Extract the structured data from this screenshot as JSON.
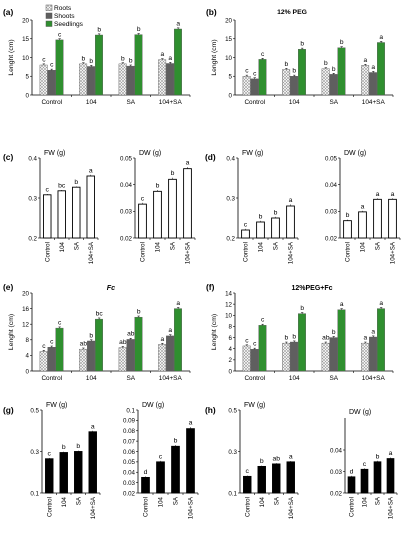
{
  "colors": {
    "roots_fill": "#ffffff",
    "roots_pattern": "#9a9a9a",
    "shoots_fill": "#5f5f5f",
    "seedlings_fill": "#2f8f2f",
    "axis": "#000000",
    "white_bar": "#ffffff",
    "black_bar": "#000000"
  },
  "legend": {
    "roots": "Roots",
    "shoots": "Shoots",
    "seedlings": "Seedlings"
  },
  "chart_data": [
    {
      "type": "bar",
      "panel": "(a)",
      "title": "",
      "ylabel": "Lenght (cm)",
      "ylim": [
        0,
        20
      ],
      "yticks": [
        0,
        5,
        10,
        15,
        20
      ],
      "categories": [
        "Control",
        "104",
        "SA",
        "104+SA"
      ],
      "series": [
        {
          "name": "Roots",
          "values": [
            8.0,
            8.3,
            8.3,
            9.4
          ],
          "errors": [
            0.3,
            0.3,
            0.3,
            0.3
          ],
          "letters": [
            "c",
            "b",
            "b",
            "a"
          ]
        },
        {
          "name": "Shoots",
          "values": [
            6.6,
            7.6,
            7.7,
            8.4
          ],
          "errors": [
            0.3,
            0.3,
            0.3,
            0.3
          ],
          "letters": [
            "c",
            "b",
            "b",
            "a"
          ]
        },
        {
          "name": "Seedlings",
          "values": [
            14.7,
            16.0,
            16.1,
            17.6
          ],
          "errors": [
            0.3,
            0.3,
            0.3,
            0.3
          ],
          "letters": [
            "c",
            "b",
            "b",
            "a"
          ]
        }
      ]
    },
    {
      "type": "bar",
      "panel": "(b)",
      "title": "12% PEG",
      "ylabel": "Lenght (cm)",
      "ylim": [
        0,
        20
      ],
      "yticks": [
        0,
        5,
        10,
        15,
        20
      ],
      "categories": [
        "Control",
        "104",
        "SA",
        "104+SA"
      ],
      "series": [
        {
          "name": "Roots",
          "values": [
            5.0,
            6.8,
            7.0,
            7.9
          ],
          "errors": [
            0.3,
            0.3,
            0.3,
            0.3
          ],
          "letters": [
            "c",
            "b",
            "b",
            "a"
          ]
        },
        {
          "name": "Shoots",
          "values": [
            4.3,
            5.0,
            5.5,
            6.0
          ],
          "errors": [
            0.3,
            0.3,
            0.3,
            0.3
          ],
          "letters": [
            "c",
            "b",
            "b",
            "a"
          ]
        },
        {
          "name": "Seedlings",
          "values": [
            9.5,
            12.2,
            12.6,
            14.0
          ],
          "errors": [
            0.3,
            0.3,
            0.3,
            0.3
          ],
          "letters": [
            "c",
            "b",
            "b",
            "a"
          ]
        }
      ]
    },
    {
      "type": "bar",
      "panel": "(c)",
      "title": "FW (g)",
      "ylim": [
        0.2,
        0.4
      ],
      "yticks": [
        0.2,
        0.3,
        0.4
      ],
      "categories": [
        "Control",
        "104",
        "SA",
        "104+SA"
      ],
      "values": [
        0.308,
        0.318,
        0.327,
        0.355
      ],
      "errors": [
        0.002,
        0.002,
        0.002,
        0.003
      ],
      "letters": [
        "c",
        "bc",
        "b",
        "a"
      ]
    },
    {
      "type": "bar",
      "panel": "(c)",
      "title": "DW (g)",
      "ylim": [
        0.02,
        0.05
      ],
      "yticks": [
        0.02,
        0.03,
        0.04,
        0.05
      ],
      "categories": [
        "Control",
        "104",
        "SA",
        "104+SA"
      ],
      "values": [
        0.0327,
        0.0375,
        0.042,
        0.046
      ],
      "errors": [
        0.0005,
        0.0005,
        0.0006,
        0.0006
      ],
      "letters": [
        "c",
        "b",
        "b",
        "a"
      ]
    },
    {
      "type": "bar",
      "panel": "(d)",
      "title": "FW (g)",
      "ylim": [
        0.2,
        0.4
      ],
      "yticks": [
        0.2,
        0.3,
        0.4
      ],
      "categories": [
        "Control",
        "104",
        "SA",
        "104+SA"
      ],
      "values": [
        0.22,
        0.24,
        0.25,
        0.28
      ],
      "errors": [
        0.003,
        0.003,
        0.003,
        0.004
      ],
      "letters": [
        "c",
        "b",
        "b",
        "a"
      ]
    },
    {
      "type": "bar",
      "panel": "(d)",
      "title": "DW (g)",
      "ylim": [
        0.02,
        0.05
      ],
      "yticks": [
        0.02,
        0.03,
        0.04,
        0.05
      ],
      "categories": [
        "Control",
        "104",
        "SA",
        "104+SA"
      ],
      "values": [
        0.0265,
        0.0298,
        0.0345,
        0.0345
      ],
      "errors": [
        0.0004,
        0.0004,
        0.0004,
        0.0004
      ],
      "letters": [
        "b",
        "a",
        "a",
        "a"
      ]
    },
    {
      "type": "bar",
      "panel": "(e)",
      "title": "Fc",
      "ylabel": "Lenght (cm)",
      "ylim": [
        0,
        20
      ],
      "yticks": [
        0,
        4,
        8,
        12,
        16,
        20
      ],
      "categories": [
        "Control",
        "104",
        "SA",
        "104+SA"
      ],
      "series": [
        {
          "name": "Roots",
          "values": [
            5.0,
            5.6,
            6.0,
            6.8
          ],
          "errors": [
            0.3,
            0.3,
            0.3,
            0.3
          ],
          "letters": [
            "c",
            "ab",
            "ab",
            "a"
          ]
        },
        {
          "name": "Shoots",
          "values": [
            6.1,
            7.7,
            8.1,
            9.0
          ],
          "errors": [
            0.3,
            0.3,
            0.3,
            0.3
          ],
          "letters": [
            "c",
            "b",
            "ab",
            "a"
          ]
        },
        {
          "name": "Seedlings",
          "values": [
            11.0,
            13.3,
            13.8,
            16.0
          ],
          "errors": [
            0.3,
            0.3,
            0.3,
            0.3
          ],
          "letters": [
            "c",
            "bc",
            "b",
            "a"
          ]
        }
      ]
    },
    {
      "type": "bar",
      "panel": "(f)",
      "title": "12%PEG+Fc",
      "ylabel": "Lenght (cm)",
      "ylim": [
        0,
        14
      ],
      "yticks": [
        0,
        2,
        4,
        6,
        8,
        10,
        12,
        14
      ],
      "categories": [
        "Control",
        "104",
        "SA",
        "104+SA"
      ],
      "series": [
        {
          "name": "Roots",
          "values": [
            4.5,
            5.0,
            5.0,
            5.0
          ],
          "errors": [
            0.2,
            0.2,
            0.2,
            0.2
          ],
          "letters": [
            "c",
            "b",
            "ab",
            "a"
          ]
        },
        {
          "name": "Shoots",
          "values": [
            3.9,
            5.2,
            6.0,
            6.1
          ],
          "errors": [
            0.2,
            0.2,
            0.2,
            0.2
          ],
          "letters": [
            "c",
            "b",
            "b",
            "a"
          ]
        },
        {
          "name": "Seedlings",
          "values": [
            8.2,
            10.3,
            11.0,
            11.2
          ],
          "errors": [
            0.2,
            0.2,
            0.2,
            0.2
          ],
          "letters": [
            "c",
            "b",
            "a",
            "a"
          ]
        }
      ]
    },
    {
      "type": "bar",
      "panel": "(g)",
      "title": "FW (g)",
      "ylim": [
        0.1,
        0.5
      ],
      "yticks": [
        0.1,
        0.3,
        0.5
      ],
      "categories": [
        "Control",
        "104",
        "SA",
        "104+SA"
      ],
      "values": [
        0.265,
        0.295,
        0.3,
        0.395
      ],
      "errors": [
        0.004,
        0.004,
        0.004,
        0.005
      ],
      "letters": [
        "c",
        "b",
        "b",
        "a"
      ]
    },
    {
      "type": "bar",
      "panel": "(g)",
      "title": "DW (g)",
      "ylim": [
        0.02,
        0.1
      ],
      "yticks": [
        0.02,
        0.03,
        0.04,
        0.05,
        0.06,
        0.07,
        0.08,
        0.09,
        0.1
      ],
      "categories": [
        "Control",
        "104",
        "SA",
        "104+SA"
      ],
      "values": [
        0.035,
        0.05,
        0.065,
        0.082
      ],
      "errors": [
        0.001,
        0.001,
        0.0012,
        0.0015
      ],
      "letters": [
        "d",
        "c",
        "b",
        "a"
      ]
    },
    {
      "type": "bar",
      "panel": "(h)",
      "title": "FW (g)",
      "ylim": [
        0.1,
        0.5
      ],
      "yticks": [
        0.1,
        0.3,
        0.5
      ],
      "categories": [
        "Control",
        "104",
        "SA",
        "104+SA"
      ],
      "values": [
        0.18,
        0.228,
        0.24,
        0.25
      ],
      "errors": [
        0.004,
        0.004,
        0.004,
        0.004
      ],
      "letters": [
        "c",
        "b",
        "ab",
        "a"
      ]
    },
    {
      "type": "bar",
      "panel": "(h)",
      "title": "DW (g)",
      "ylim": [
        0.02,
        0.04
      ],
      "yticks": [
        0.02,
        0.03,
        0.04
      ],
      "categories": [
        "Control",
        "104",
        "SA",
        "104+SA"
      ],
      "values": [
        0.0275,
        0.031,
        0.0345,
        0.036
      ],
      "errors": [
        0.0005,
        0.0005,
        0.0005,
        0.0005
      ],
      "letters": [
        "d",
        "c",
        "b",
        "a"
      ]
    }
  ]
}
